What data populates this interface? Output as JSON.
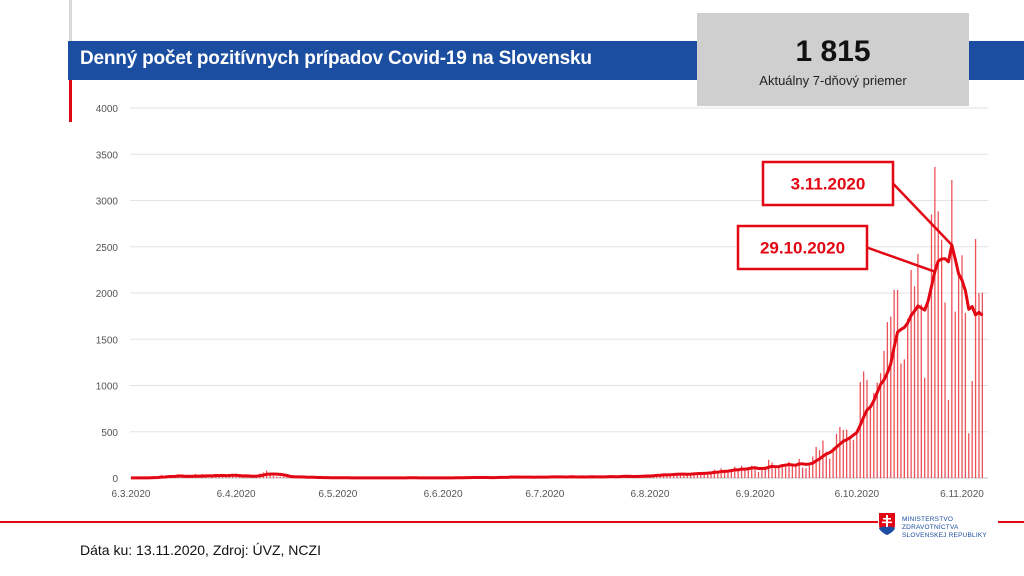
{
  "header": {
    "title": "Denný počet pozitívnych prípadov Covid-19 na Slovensku"
  },
  "kpi": {
    "value": "1 815",
    "label": "Aktuálny 7-dňový priemer"
  },
  "footer": {
    "source": "Dáta ku: 13.11.2020, Zdroj: ÚVZ, NCZI"
  },
  "logo": {
    "line1": "MINISTERSTVO",
    "line2": "ZDRAVOTNÍCTVA",
    "line3": "SLOVENSKEJ REPUBLIKY"
  },
  "colors": {
    "brand_blue": "#1b4ea0",
    "accent_red": "#e30613",
    "kpi_bg": "#d0cfcf"
  },
  "chart_data": {
    "type": "bar",
    "title": "Denný počet pozitívnych prípadov Covid-19 na Slovensku",
    "start_date": "6.3.2020",
    "end_date": "12.11.2020",
    "ylim": [
      0,
      4000
    ],
    "yticks": [
      0,
      500,
      1000,
      1500,
      2000,
      2500,
      3000,
      3500,
      4000
    ],
    "xticks": [
      "6.3.2020",
      "6.4.2020",
      "6.5.2020",
      "6.6.2020",
      "6.7.2020",
      "6.8.2020",
      "6.9.2020",
      "6.10.2020",
      "6.11.2020"
    ],
    "grid": true,
    "series": [
      {
        "kind": "bar",
        "values": [
          1,
          2,
          1,
          0,
          3,
          3,
          7,
          11,
          12,
          32,
          10,
          25,
          19,
          14,
          41,
          13,
          0,
          20,
          12,
          44,
          9,
          44,
          31,
          0,
          22,
          43,
          35,
          28,
          24,
          40,
          20,
          18,
          17,
          10,
          30,
          12,
          25,
          33,
          48,
          60,
          80,
          35,
          20,
          15,
          14,
          13,
          12,
          6,
          16,
          8,
          12,
          5,
          2,
          7,
          4,
          3,
          2,
          3,
          3,
          1,
          5,
          2,
          3,
          0,
          1,
          0,
          0,
          5,
          1,
          2,
          1,
          0,
          1,
          1,
          1,
          3,
          0,
          0,
          8,
          1,
          0,
          2,
          4,
          2,
          0,
          0,
          1,
          3,
          0,
          2,
          1,
          3,
          3,
          1,
          2,
          0,
          7,
          3,
          6,
          9,
          5,
          7,
          2,
          3,
          7,
          2,
          7,
          4,
          11,
          12,
          8,
          5,
          24,
          4,
          8,
          9,
          7,
          7,
          9,
          10,
          17,
          8,
          8,
          9,
          21,
          15,
          8,
          13,
          6,
          12,
          19,
          9,
          13,
          11,
          7,
          15,
          22,
          12,
          4,
          10,
          14,
          27,
          15,
          11,
          22,
          22,
          17,
          13,
          11,
          13,
          21,
          35,
          38,
          21,
          33,
          39,
          25,
          44,
          41,
          43,
          43,
          51,
          44,
          28,
          38,
          50,
          61,
          57,
          60,
          58,
          41,
          60,
          91,
          73,
          104,
          74,
          76,
          81,
          123,
          85,
          132,
          97,
          104,
          133,
          104,
          65,
          89,
          126,
          196,
          167,
          105,
          114,
          142,
          121,
          175,
          157,
          155,
          206,
          113,
          106,
          152,
          232,
          336,
          302,
          405,
          285,
          209,
          330,
          478,
          552,
          519,
          523,
          438,
          413,
          521,
          1037,
          1152,
          1061,
          749,
          920,
          1031,
          1133,
          1374,
          1685,
          1745,
          2034,
          2032,
          1238,
          1283,
          1722,
          2248,
          2075,
          2422,
          1876,
          1083,
          1947,
          2848,
          3363,
          2882,
          2577,
          1897,
          845,
          3221,
          1798,
          2229,
          2407,
          1785,
          484,
          1049,
          2585,
          1998,
          2005
        ]
      },
      {
        "kind": "line",
        "label": "7-day average"
      }
    ],
    "annotations": [
      {
        "text": "3.11.2020",
        "date": "3.11.2020"
      },
      {
        "text": "29.10.2020",
        "date": "29.10.2020"
      }
    ]
  }
}
